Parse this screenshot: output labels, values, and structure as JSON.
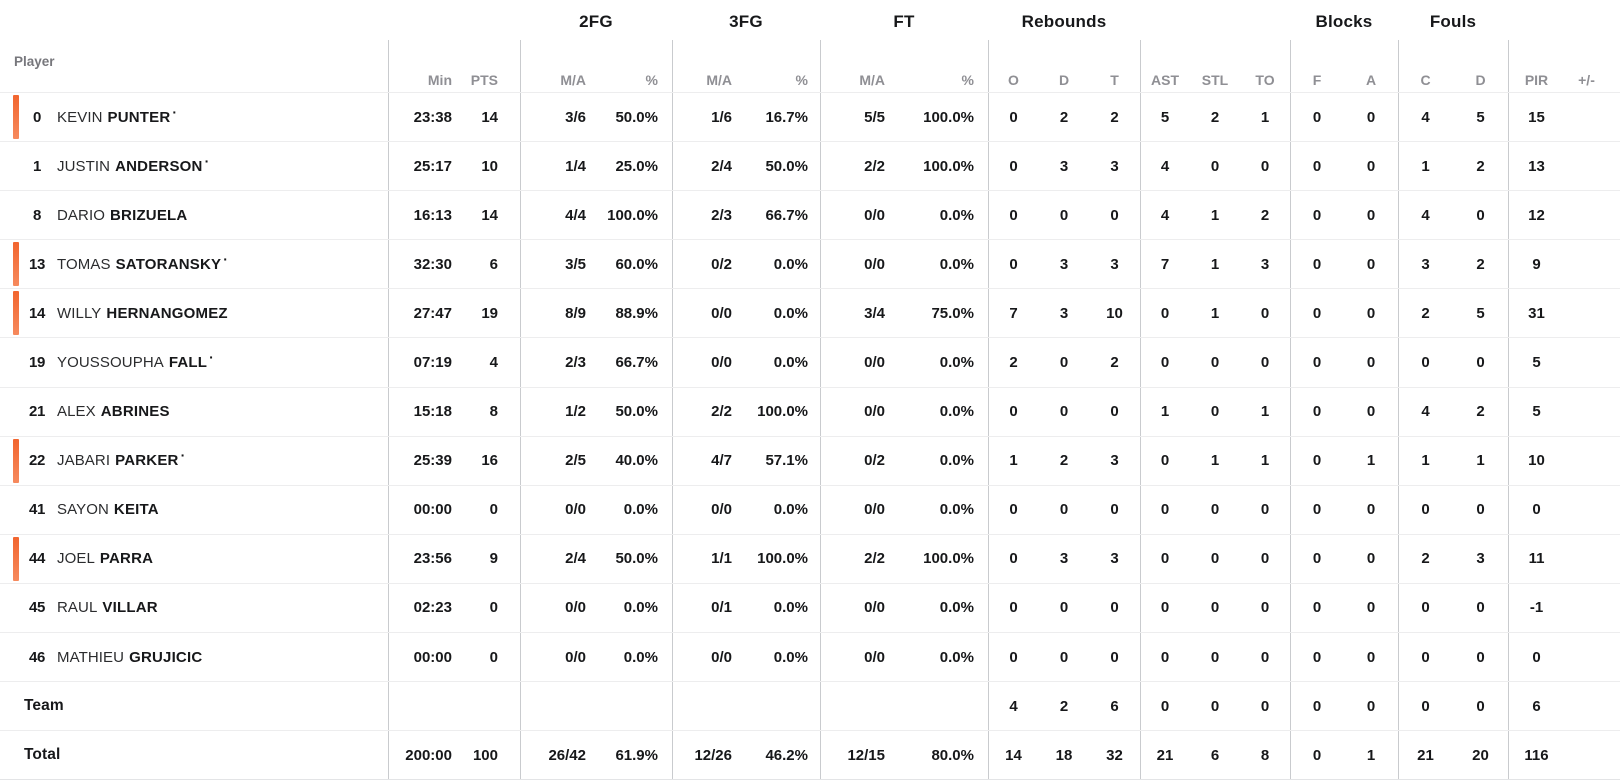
{
  "table": {
    "player_header": "Player",
    "starter_dot": "·",
    "groups": [
      {
        "label": "2FG"
      },
      {
        "label": "3FG"
      },
      {
        "label": "FT"
      },
      {
        "label": "Rebounds"
      },
      {
        "label": "Blocks"
      },
      {
        "label": "Fouls"
      }
    ],
    "subheaders": [
      "Min",
      "PTS",
      "M/A",
      "%",
      "M/A",
      "%",
      "M/A",
      "%",
      "O",
      "D",
      "T",
      "AST",
      "STL",
      "TO",
      "F",
      "A",
      "C",
      "D",
      "PIR",
      "+/-"
    ],
    "rows": [
      {
        "number": "0",
        "first": "KEVIN",
        "last": "PUNTER",
        "starter": true,
        "on_court": true,
        "stats": [
          "23:38",
          "14",
          "3/6",
          "50.0%",
          "1/6",
          "16.7%",
          "5/5",
          "100.0%",
          "0",
          "2",
          "2",
          "5",
          "2",
          "1",
          "0",
          "0",
          "4",
          "5",
          "15",
          ""
        ]
      },
      {
        "number": "1",
        "first": "JUSTIN",
        "last": "ANDERSON",
        "starter": true,
        "on_court": false,
        "stats": [
          "25:17",
          "10",
          "1/4",
          "25.0%",
          "2/4",
          "50.0%",
          "2/2",
          "100.0%",
          "0",
          "3",
          "3",
          "4",
          "0",
          "0",
          "0",
          "0",
          "1",
          "2",
          "13",
          ""
        ]
      },
      {
        "number": "8",
        "first": "DARIO",
        "last": "BRIZUELA",
        "starter": false,
        "on_court": false,
        "stats": [
          "16:13",
          "14",
          "4/4",
          "100.0%",
          "2/3",
          "66.7%",
          "0/0",
          "0.0%",
          "0",
          "0",
          "0",
          "4",
          "1",
          "2",
          "0",
          "0",
          "4",
          "0",
          "12",
          ""
        ]
      },
      {
        "number": "13",
        "first": "TOMAS",
        "last": "SATORANSKY",
        "starter": true,
        "on_court": true,
        "stats": [
          "32:30",
          "6",
          "3/5",
          "60.0%",
          "0/2",
          "0.0%",
          "0/0",
          "0.0%",
          "0",
          "3",
          "3",
          "7",
          "1",
          "3",
          "0",
          "0",
          "3",
          "2",
          "9",
          ""
        ]
      },
      {
        "number": "14",
        "first": "WILLY",
        "last": "HERNANGOMEZ",
        "starter": false,
        "on_court": true,
        "stats": [
          "27:47",
          "19",
          "8/9",
          "88.9%",
          "0/0",
          "0.0%",
          "3/4",
          "75.0%",
          "7",
          "3",
          "10",
          "0",
          "1",
          "0",
          "0",
          "0",
          "2",
          "5",
          "31",
          ""
        ]
      },
      {
        "number": "19",
        "first": "YOUSSOUPHA",
        "last": "FALL",
        "starter": true,
        "on_court": false,
        "stats": [
          "07:19",
          "4",
          "2/3",
          "66.7%",
          "0/0",
          "0.0%",
          "0/0",
          "0.0%",
          "2",
          "0",
          "2",
          "0",
          "0",
          "0",
          "0",
          "0",
          "0",
          "0",
          "5",
          ""
        ]
      },
      {
        "number": "21",
        "first": "ALEX",
        "last": "ABRINES",
        "starter": false,
        "on_court": false,
        "stats": [
          "15:18",
          "8",
          "1/2",
          "50.0%",
          "2/2",
          "100.0%",
          "0/0",
          "0.0%",
          "0",
          "0",
          "0",
          "1",
          "0",
          "1",
          "0",
          "0",
          "4",
          "2",
          "5",
          ""
        ]
      },
      {
        "number": "22",
        "first": "JABARI",
        "last": "PARKER",
        "starter": true,
        "on_court": true,
        "stats": [
          "25:39",
          "16",
          "2/5",
          "40.0%",
          "4/7",
          "57.1%",
          "0/2",
          "0.0%",
          "1",
          "2",
          "3",
          "0",
          "1",
          "1",
          "0",
          "1",
          "1",
          "1",
          "10",
          ""
        ]
      },
      {
        "number": "41",
        "first": "SAYON",
        "last": "KEITA",
        "starter": false,
        "on_court": false,
        "stats": [
          "00:00",
          "0",
          "0/0",
          "0.0%",
          "0/0",
          "0.0%",
          "0/0",
          "0.0%",
          "0",
          "0",
          "0",
          "0",
          "0",
          "0",
          "0",
          "0",
          "0",
          "0",
          "0",
          ""
        ]
      },
      {
        "number": "44",
        "first": "JOEL",
        "last": "PARRA",
        "starter": false,
        "on_court": true,
        "stats": [
          "23:56",
          "9",
          "2/4",
          "50.0%",
          "1/1",
          "100.0%",
          "2/2",
          "100.0%",
          "0",
          "3",
          "3",
          "0",
          "0",
          "0",
          "0",
          "0",
          "2",
          "3",
          "11",
          ""
        ]
      },
      {
        "number": "45",
        "first": "RAUL",
        "last": "VILLAR",
        "starter": false,
        "on_court": false,
        "stats": [
          "02:23",
          "0",
          "0/0",
          "0.0%",
          "0/1",
          "0.0%",
          "0/0",
          "0.0%",
          "0",
          "0",
          "0",
          "0",
          "0",
          "0",
          "0",
          "0",
          "0",
          "0",
          "-1",
          ""
        ]
      },
      {
        "number": "46",
        "first": "MATHIEU",
        "last": "GRUJICIC",
        "starter": false,
        "on_court": false,
        "stats": [
          "00:00",
          "0",
          "0/0",
          "0.0%",
          "0/0",
          "0.0%",
          "0/0",
          "0.0%",
          "0",
          "0",
          "0",
          "0",
          "0",
          "0",
          "0",
          "0",
          "0",
          "0",
          "0",
          ""
        ]
      },
      {
        "label": "Team",
        "stats": [
          "",
          "",
          "",
          "",
          "",
          "",
          "",
          "",
          "4",
          "2",
          "6",
          "0",
          "0",
          "0",
          "0",
          "0",
          "0",
          "0",
          "6",
          ""
        ]
      },
      {
        "label": "Total",
        "stats": [
          "200:00",
          "100",
          "26/42",
          "61.9%",
          "12/26",
          "46.2%",
          "12/15",
          "80.0%",
          "14",
          "18",
          "32",
          "21",
          "6",
          "8",
          "0",
          "1",
          "21",
          "20",
          "116",
          ""
        ]
      }
    ]
  },
  "colors": {
    "accent_orange_top": "#f2652e",
    "accent_orange_bottom": "#f68a5e"
  }
}
